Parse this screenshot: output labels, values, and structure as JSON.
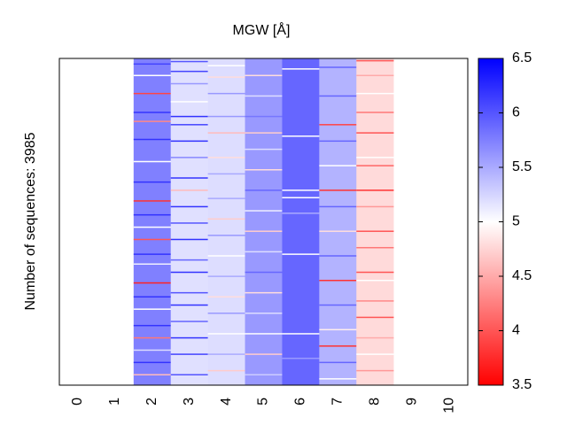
{
  "chart_data": {
    "type": "heatmap",
    "title": "MGW [Å]",
    "ylabel": "Number of sequences: 3985",
    "xlabel": "",
    "n_rows": 3985,
    "x_ticks": [
      "0",
      "1",
      "2",
      "3",
      "4",
      "5",
      "6",
      "7",
      "8",
      "9",
      "10"
    ],
    "colorbar": {
      "range": [
        3.5,
        6.5
      ],
      "ticks": [
        "3.5",
        "4",
        "4.5",
        "5",
        "5.5",
        "6",
        "6.5"
      ],
      "tick_values": [
        3.5,
        4,
        4.5,
        5,
        5.5,
        6,
        6.5
      ],
      "colors": {
        "low": "#ff0000",
        "mid": "#ffffff",
        "high": "#0000ff"
      }
    },
    "columns": [
      {
        "position": 2,
        "base": 5.75,
        "stripes": [
          [
            60,
            6.1
          ],
          [
            200,
            5.0
          ],
          [
            420,
            3.9
          ],
          [
            650,
            6.2
          ],
          [
            760,
            4.3
          ],
          [
            980,
            6.2
          ],
          [
            1250,
            5.0
          ],
          [
            1500,
            6.2
          ],
          [
            1730,
            3.8
          ],
          [
            1900,
            6.2
          ],
          [
            2050,
            5.0
          ],
          [
            2200,
            4.0
          ],
          [
            2380,
            6.2
          ],
          [
            2500,
            5.1
          ],
          [
            2730,
            3.7
          ],
          [
            2900,
            6.2
          ],
          [
            3050,
            5.0
          ],
          [
            3250,
            6.2
          ],
          [
            3400,
            4.2
          ],
          [
            3550,
            5.2
          ],
          [
            3700,
            6.2
          ],
          [
            3850,
            4.6
          ]
        ]
      },
      {
        "position": 3,
        "base": 5.18,
        "stripes": [
          [
            30,
            6.0
          ],
          [
            150,
            6.1
          ],
          [
            300,
            5.6
          ],
          [
            520,
            5.0
          ],
          [
            700,
            6.2
          ],
          [
            800,
            6.1
          ],
          [
            1000,
            6.2
          ],
          [
            1200,
            5.7
          ],
          [
            1450,
            6.2
          ],
          [
            1600,
            4.6
          ],
          [
            1800,
            6.2
          ],
          [
            2000,
            6.0
          ],
          [
            2200,
            6.2
          ],
          [
            2450,
            5.9
          ],
          [
            2600,
            6.2
          ],
          [
            2850,
            6.0
          ],
          [
            3000,
            6.2
          ],
          [
            3200,
            5.9
          ],
          [
            3400,
            6.2
          ],
          [
            3600,
            6.1
          ],
          [
            3850,
            6.0
          ]
        ]
      },
      {
        "position": 4,
        "base": 5.2,
        "stripes": [
          [
            80,
            5.0
          ],
          [
            220,
            4.8
          ],
          [
            420,
            5.6
          ],
          [
            700,
            5.6
          ],
          [
            900,
            4.6
          ],
          [
            1200,
            4.8
          ],
          [
            1400,
            5.5
          ],
          [
            1700,
            5.5
          ],
          [
            1950,
            4.7
          ],
          [
            2150,
            5.6
          ],
          [
            2400,
            5.0
          ],
          [
            2650,
            5.5
          ],
          [
            2900,
            4.8
          ],
          [
            3100,
            5.6
          ],
          [
            3350,
            5.0
          ],
          [
            3600,
            5.5
          ],
          [
            3800,
            4.7
          ]
        ]
      },
      {
        "position": 5,
        "base": 5.6,
        "stripes": [
          [
            200,
            4.8
          ],
          [
            450,
            5.2
          ],
          [
            700,
            5.8
          ],
          [
            900,
            4.7
          ],
          [
            1100,
            5.2
          ],
          [
            1350,
            4.8
          ],
          [
            1600,
            5.9
          ],
          [
            1850,
            5.1
          ],
          [
            2100,
            4.7
          ],
          [
            2350,
            5.2
          ],
          [
            2600,
            5.9
          ],
          [
            2850,
            4.8
          ],
          [
            3100,
            5.2
          ],
          [
            3350,
            5.0
          ],
          [
            3600,
            4.7
          ],
          [
            3850,
            5.3
          ]
        ]
      },
      {
        "position": 6,
        "base": 5.9,
        "stripes": [
          [
            120,
            5.0
          ],
          [
            940,
            5.0
          ],
          [
            1600,
            5.0
          ],
          [
            1690,
            5.0
          ],
          [
            1880,
            5.5
          ],
          [
            2380,
            5.0
          ],
          [
            3350,
            5.0
          ],
          [
            3650,
            5.6
          ]
        ]
      },
      {
        "position": 7,
        "base": 5.45,
        "stripes": [
          [
            100,
            5.9
          ],
          [
            450,
            5.9
          ],
          [
            800,
            3.9
          ],
          [
            1000,
            5.9
          ],
          [
            1300,
            5.0
          ],
          [
            1600,
            3.8
          ],
          [
            1800,
            5.9
          ],
          [
            2100,
            4.8
          ],
          [
            2400,
            5.9
          ],
          [
            2700,
            3.8
          ],
          [
            3000,
            5.9
          ],
          [
            3300,
            4.9
          ],
          [
            3500,
            3.8
          ],
          [
            3700,
            5.9
          ],
          [
            3900,
            5.0
          ]
        ]
      },
      {
        "position": 8,
        "base": 4.78,
        "stripes": [
          [
            20,
            4.0
          ],
          [
            200,
            4.5
          ],
          [
            420,
            5.0
          ],
          [
            650,
            4.2
          ],
          [
            900,
            4.0
          ],
          [
            1200,
            5.0
          ],
          [
            1300,
            4.1
          ],
          [
            1600,
            3.8
          ],
          [
            1800,
            4.4
          ],
          [
            2100,
            4.0
          ],
          [
            2300,
            4.2
          ],
          [
            2600,
            4.0
          ],
          [
            2700,
            5.0
          ],
          [
            2950,
            4.3
          ],
          [
            3150,
            4.0
          ],
          [
            3400,
            4.5
          ],
          [
            3600,
            5.0
          ],
          [
            3800,
            4.4
          ]
        ]
      }
    ]
  }
}
